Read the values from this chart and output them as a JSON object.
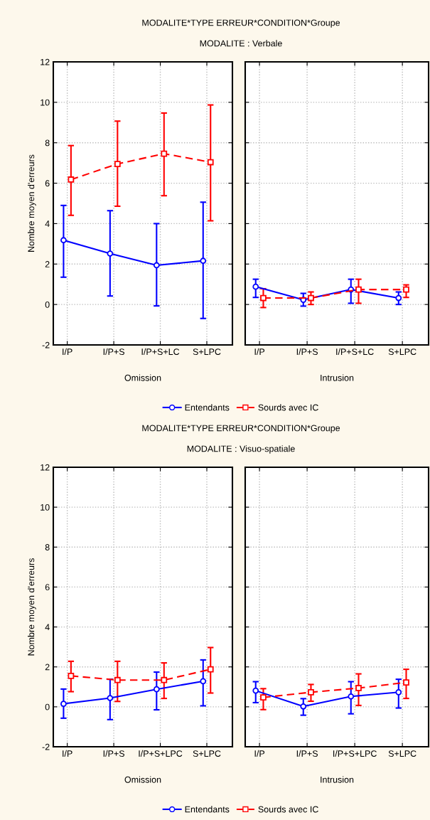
{
  "chart_data": [
    {
      "type": "line",
      "title": "MODALITE*TYPE ERREUR*CONDITION*Groupe",
      "subtitle": "MODALITE : Verbale",
      "xlabel": "Omission",
      "ylabel": "Nombre moyen d'erreurs",
      "categories": [
        "I/P",
        "I/P+S",
        "I/P+S+LC",
        "S+LPC"
      ],
      "ylim": [
        -2,
        12
      ],
      "yticks": [
        -2,
        0,
        2,
        4,
        6,
        8,
        10,
        12
      ],
      "grid": true,
      "legend": "bottom",
      "series": [
        {
          "name": "Entendants",
          "color": "#0000ff",
          "marker": "circle",
          "line_style": "solid",
          "values": [
            3.18,
            2.52,
            1.94,
            2.16
          ],
          "errors": [
            [
              1.35,
              4.9
            ],
            [
              0.42,
              4.64
            ],
            [
              -0.07,
              4.0
            ],
            [
              -0.69,
              5.06
            ]
          ]
        },
        {
          "name": "Sourds avec IC",
          "color": "#ff0000",
          "marker": "square",
          "line_style": "dashed",
          "values": [
            6.18,
            6.95,
            7.46,
            7.04
          ],
          "errors": [
            [
              4.41,
              7.86
            ],
            [
              4.86,
              9.07
            ],
            [
              5.38,
              9.47
            ],
            [
              4.14,
              9.87
            ]
          ]
        }
      ]
    },
    {
      "type": "line",
      "xlabel": "Intrusion",
      "categories": [
        "I/P",
        "I/P+S",
        "I/P+S+LC",
        "S+LPC"
      ],
      "ylim": [
        -2,
        12
      ],
      "yticks": [
        -2,
        0,
        2,
        4,
        6,
        8,
        10,
        12
      ],
      "grid": true,
      "tick_labels": "x",
      "series": [
        {
          "color": "#0000ff",
          "marker": "circle",
          "line_style": "solid",
          "values": [
            0.88,
            0.23,
            0.74,
            0.32
          ],
          "errors": [
            [
              0.35,
              1.25
            ],
            [
              -0.08,
              0.55
            ],
            [
              0.06,
              1.25
            ],
            [
              0.0,
              0.62
            ]
          ]
        },
        {
          "color": "#ff0000",
          "marker": "square",
          "line_style": "dashed",
          "values": [
            0.32,
            0.32,
            0.74,
            0.74
          ],
          "errors": [
            [
              -0.15,
              0.78
            ],
            [
              0.0,
              0.62
            ],
            [
              0.06,
              1.25
            ],
            [
              0.35,
              0.97
            ]
          ]
        }
      ]
    },
    {
      "type": "line",
      "title": "MODALITE*TYPE ERREUR*CONDITION*Groupe",
      "subtitle": "MODALITE : Visuo-spatiale",
      "xlabel": "Omission",
      "ylabel": "Nombre moyen d'erreurs",
      "categories": [
        "I/P",
        "I/P+S",
        "I/P+S+LPC",
        "S+LPC"
      ],
      "ylim": [
        -2,
        12
      ],
      "yticks": [
        -2,
        0,
        2,
        4,
        6,
        8,
        10,
        12
      ],
      "grid": true,
      "legend": "bottom",
      "series": [
        {
          "name": "Entendants",
          "color": "#0000ff",
          "marker": "circle",
          "line_style": "solid",
          "values": [
            0.15,
            0.44,
            0.88,
            1.28
          ],
          "errors": [
            [
              -0.57,
              0.89
            ],
            [
              -0.64,
              1.38
            ],
            [
              -0.15,
              1.74
            ],
            [
              0.05,
              2.35
            ]
          ]
        },
        {
          "name": "Sourds avec IC",
          "color": "#ff0000",
          "marker": "square",
          "line_style": "dashed",
          "values": [
            1.55,
            1.34,
            1.34,
            1.88
          ],
          "errors": [
            [
              0.76,
              2.28
            ],
            [
              0.27,
              2.28
            ],
            [
              0.42,
              2.2
            ],
            [
              0.69,
              2.97
            ]
          ]
        }
      ]
    },
    {
      "type": "line",
      "xlabel": "Intrusion",
      "categories": [
        "I/P",
        "I/P+S",
        "I/P+S+LPC",
        "S+LPC"
      ],
      "ylim": [
        -2,
        12
      ],
      "yticks": [
        -2,
        0,
        2,
        4,
        6,
        8,
        10,
        12
      ],
      "grid": true,
      "tick_labels": "x",
      "series": [
        {
          "color": "#0000ff",
          "marker": "circle",
          "line_style": "solid",
          "values": [
            0.81,
            0.02,
            0.52,
            0.73
          ],
          "errors": [
            [
              0.21,
              1.26
            ],
            [
              -0.42,
              0.41
            ],
            [
              -0.35,
              1.26
            ],
            [
              -0.06,
              1.38
            ]
          ]
        },
        {
          "color": "#ff0000",
          "marker": "square",
          "line_style": "dashed",
          "values": [
            0.47,
            0.73,
            0.94,
            1.22
          ],
          "errors": [
            [
              -0.14,
              0.91
            ],
            [
              0.28,
              1.12
            ],
            [
              0.07,
              1.65
            ],
            [
              0.42,
              1.88
            ]
          ]
        }
      ]
    }
  ]
}
